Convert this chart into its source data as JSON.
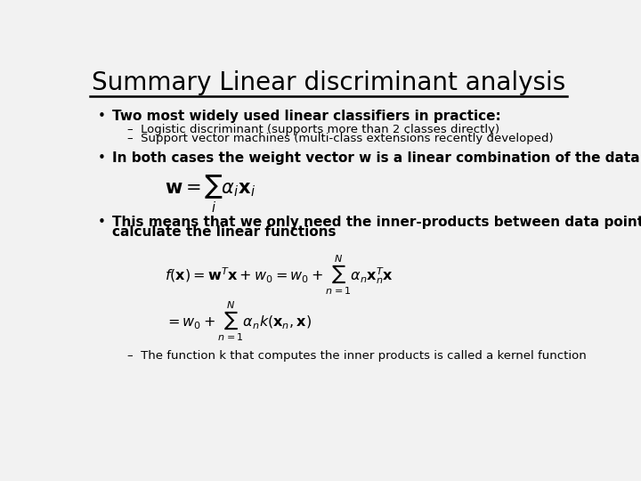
{
  "title": "Summary Linear discriminant analysis",
  "bg_color": "#f2f2f2",
  "title_color": "#000000",
  "line_color": "#000000",
  "bullet1_bold": "Two most widely used linear classifiers in practice:",
  "sub1a": "Logistic discriminant (supports more than 2 classes directly)",
  "sub1b": "Support vector machines (multi-class extensions recently developed)",
  "bullet2_bold": "In both cases the weight vector w is a linear combination of the data points",
  "formula1": "$\\mathbf{w} = \\sum_i \\alpha_i \\mathbf{x}_i$",
  "bullet3_line1": "This means that we only need the inner-products between data points to",
  "bullet3_line2": "calculate the linear functions",
  "formula2": "$f(\\mathbf{x}) = \\mathbf{w}^T\\mathbf{x} + w_0 = w_0 + \\sum_{n=1}^{N} \\alpha_n \\mathbf{x}_n^T \\mathbf{x}$",
  "formula3": "$= w_0 + \\sum_{n=1}^{N} \\alpha_n k(\\mathbf{x}_n, \\mathbf{x})$",
  "sub3": "The function k that computes the inner products is called a kernel function"
}
